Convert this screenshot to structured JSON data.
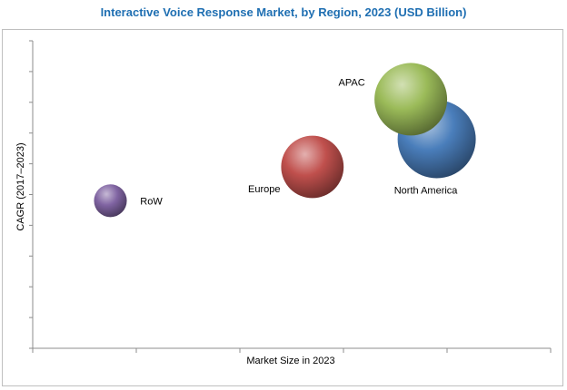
{
  "chart_data": {
    "type": "scatter",
    "subtype": "bubble",
    "title": "Interactive Voice Response Market, by Region, 2023 (USD Billion)",
    "xlabel": "Market Size in 2023",
    "ylabel": "CAGR (2017–2023)",
    "xlim": [
      0,
      10
    ],
    "ylim": [
      0,
      10
    ],
    "grid": false,
    "series": [
      {
        "name": "North America",
        "x": 7.8,
        "y": 6.8,
        "size": 1.0,
        "color": "#4a7ebb"
      },
      {
        "name": "APAC",
        "x": 7.3,
        "y": 8.1,
        "size": 0.93,
        "color": "#9bbb59"
      },
      {
        "name": "Europe",
        "x": 5.4,
        "y": 5.9,
        "size": 0.8,
        "color": "#c0504d"
      },
      {
        "name": "RoW",
        "x": 1.5,
        "y": 4.8,
        "size": 0.42,
        "color": "#8064a2"
      }
    ]
  }
}
